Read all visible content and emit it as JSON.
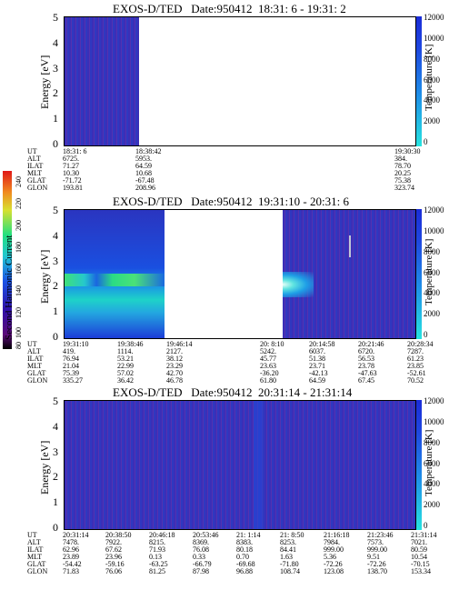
{
  "panels": [
    {
      "title": "EXOS-D/TED   Date:950412  18:31: 6 - 19:31: 2",
      "ylabel": "Energy [eV]",
      "rlabel": "Temperature [K]",
      "yticks": [
        "5",
        "4",
        "3",
        "2",
        "1",
        "0"
      ],
      "rticks": [
        "12000",
        "10000",
        "8000",
        "6000",
        "4000",
        "2000",
        "0"
      ],
      "eph_labels": [
        "UT",
        "ALT",
        "ILAT",
        "MLT",
        "GLAT",
        "GLON"
      ],
      "eph_cols": [
        [
          "18:31: 6",
          "6725.",
          "71.27",
          "10.30",
          "-71.72",
          "193.81"
        ],
        [
          "18:38:42",
          "5953.",
          "64.59",
          "10.68",
          "-67.48",
          "208.96"
        ],
        [
          "19:30:30",
          "384.",
          "78.70",
          "20.25",
          "75.38",
          "323.74"
        ]
      ]
    },
    {
      "title": "EXOS-D/TED   Date:950412  19:31:10 - 20:31: 6",
      "ylabel": "Energy [eV]",
      "rlabel": "Temperature [K]",
      "yticks": [
        "5",
        "4",
        "3",
        "2",
        "1",
        "0"
      ],
      "rticks": [
        "12000",
        "10000",
        "8000",
        "6000",
        "4000",
        "2000",
        "0"
      ],
      "eph_labels": [
        "UT",
        "ALT",
        "ILAT",
        "MLT",
        "GLAT",
        "GLON"
      ],
      "eph_cols": [
        [
          "19:31:10",
          "419.",
          "76.94",
          "21.04",
          "75.39",
          "335.27"
        ],
        [
          "19:38:46",
          "1114.",
          "53.21",
          "22.99",
          "57.02",
          "36.42"
        ],
        [
          "19:46:14",
          "2127.",
          "38.12",
          "23.29",
          "42.70",
          "46.78"
        ],
        [
          "20: 8:10",
          "5242.",
          "45.77",
          "23.63",
          "-36.20",
          "61.80"
        ],
        [
          "20:14:58",
          "6037.",
          "51.38",
          "23.71",
          "-42.13",
          "64.59"
        ],
        [
          "20:21:46",
          "6720.",
          "56.53",
          "23.78",
          "-47.63",
          "67.45"
        ],
        [
          "20:28:34",
          "7287.",
          "61.23",
          "23.85",
          "-52.61",
          "70.52"
        ]
      ]
    },
    {
      "title": "EXOS-D/TED   Date:950412  20:31:14 - 21:31:14",
      "ylabel": "Energy [eV]",
      "rlabel": "Temperature [K]",
      "yticks": [
        "5",
        "4",
        "3",
        "2",
        "1",
        "0"
      ],
      "rticks": [
        "12000",
        "10000",
        "8000",
        "6000",
        "4000",
        "2000",
        "0"
      ],
      "eph_labels": [
        "UT",
        "ALT",
        "ILAT",
        "MLT",
        "GLAT",
        "GLON"
      ],
      "eph_cols": [
        [
          "20:31:14",
          "7478.",
          "62.96",
          "23.89",
          "-54.42",
          "71.83"
        ],
        [
          "20:38:50",
          "7922.",
          "67.62",
          "23.96",
          "-59.16",
          "76.06"
        ],
        [
          "20:46:18",
          "8215.",
          "71.93",
          "0.13",
          "-63.25",
          "81.25"
        ],
        [
          "20:53:46",
          "8369.",
          "76.08",
          "0.33",
          "-66.79",
          "87.98"
        ],
        [
          "21: 1:14",
          "8383.",
          "80.18",
          "0.70",
          "-69.68",
          "96.88"
        ],
        [
          "21: 8:50",
          "8253.",
          "84.41",
          "1.63",
          "-71.80",
          "108.74"
        ],
        [
          "21:16:18",
          "7984.",
          "999.00",
          "5.36",
          "-72.26",
          "123.08"
        ],
        [
          "21:23:46",
          "7573.",
          "999.00",
          "9.51",
          "-72.26",
          "138.70"
        ],
        [
          "21:31:14",
          "7021.",
          "80.59",
          "10.54",
          "-70.15",
          "153.34"
        ]
      ]
    }
  ],
  "left_colorbar": {
    "label": "Second Harmonic Current",
    "ticks": [
      "240",
      "220",
      "200",
      "180",
      "160",
      "140",
      "120",
      "100",
      "80"
    ]
  },
  "chart_data": [
    {
      "type": "heatmap",
      "title": "EXOS-D/TED   Date:950412  18:31: 6 - 19:31: 2",
      "ylabel": "Energy [eV]",
      "ylim": [
        0,
        5
      ],
      "colorbar_label": "Temperature [K]",
      "colorbar_range": [
        0,
        12000
      ],
      "x_start": "18:31: 6",
      "x_end": "19:31: 2",
      "data_present": [
        [
          "18:31: 6",
          "18:38:42"
        ]
      ]
    },
    {
      "type": "heatmap",
      "title": "EXOS-D/TED   Date:950412  19:31:10 - 20:31: 6",
      "ylabel": "Energy [eV]",
      "ylim": [
        0,
        5
      ],
      "colorbar_label": "Temperature [K]",
      "colorbar_range": [
        0,
        12000
      ],
      "x_start": "19:31:10",
      "x_end": "20:31: 6",
      "data_present": [
        [
          "19:31:10",
          "19:46:14"
        ],
        [
          "20: 8:10",
          "20:31: 6"
        ]
      ]
    },
    {
      "type": "heatmap",
      "title": "EXOS-D/TED   Date:950412  20:31:14 - 21:31:14",
      "ylabel": "Energy [eV]",
      "ylim": [
        0,
        5
      ],
      "colorbar_label": "Temperature [K]",
      "colorbar_range": [
        0,
        12000
      ],
      "x_start": "20:31:14",
      "x_end": "21:31:14",
      "data_present": [
        [
          "20:31:14",
          "21:31:14"
        ]
      ]
    }
  ]
}
